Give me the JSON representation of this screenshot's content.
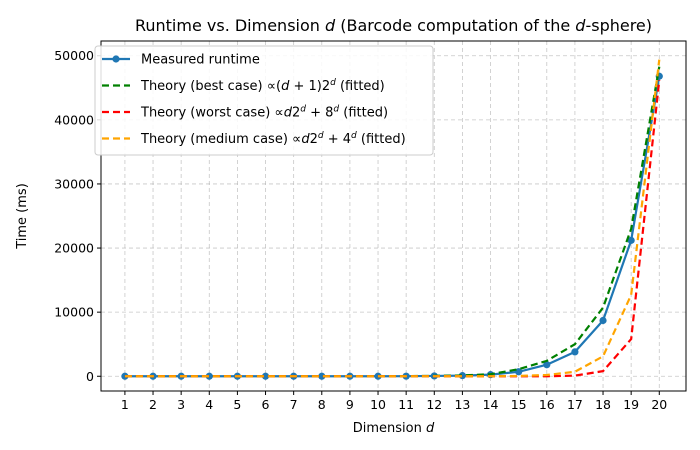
{
  "chart_data": {
    "type": "line",
    "title": "Runtime vs. Dimension d (Barcode computation of the d-sphere)",
    "title_parts": [
      {
        "text": "Runtime vs. Dimension ",
        "italic": false
      },
      {
        "text": "d",
        "italic": true
      },
      {
        "text": " (Barcode computation of the ",
        "italic": false
      },
      {
        "text": "d",
        "italic": true
      },
      {
        "text": "-sphere)",
        "italic": false
      }
    ],
    "xlabel": "Dimension d",
    "xlabel_parts": [
      {
        "text": "Dimension ",
        "italic": false
      },
      {
        "text": "d",
        "italic": true
      }
    ],
    "ylabel": "Time (ms)",
    "x": [
      1,
      2,
      3,
      4,
      5,
      6,
      7,
      8,
      9,
      10,
      11,
      12,
      13,
      14,
      15,
      16,
      17,
      18,
      19,
      20
    ],
    "xlim": [
      0.15,
      20.95
    ],
    "ylim": [
      -2300,
      52300
    ],
    "yticks": [
      0,
      10000,
      20000,
      30000,
      40000,
      50000
    ],
    "xticks": [
      1,
      2,
      3,
      4,
      5,
      6,
      7,
      8,
      9,
      10,
      11,
      12,
      13,
      14,
      15,
      16,
      17,
      18,
      19,
      20
    ],
    "grid": true,
    "legend_position": "top-left",
    "series": [
      {
        "name": "Measured runtime",
        "legend_parts": [
          {
            "text": "Measured runtime",
            "italic": false
          }
        ],
        "color": "#1f77b4",
        "style": "solid-markers",
        "values": [
          0,
          0,
          0,
          0,
          0,
          0,
          0,
          0,
          0,
          0,
          10,
          50,
          100,
          250,
          700,
          1800,
          3800,
          8700,
          21200,
          46800
        ]
      },
      {
        "name": "Theory (best case) ∝(d+1)2^d (fitted)",
        "legend_parts": [
          {
            "text": "Theory (best case)  ∝(",
            "italic": false
          },
          {
            "text": "d",
            "italic": true
          },
          {
            "text": " + 1)2",
            "italic": false
          },
          {
            "text": "d",
            "italic": true,
            "sup": true
          },
          {
            "text": " (fitted)",
            "italic": false
          }
        ],
        "color": "#008000",
        "style": "dashed",
        "values": [
          0,
          0,
          0,
          0,
          0,
          0,
          0,
          0,
          0,
          10,
          20,
          60,
          130,
          320,
          1100,
          2400,
          5000,
          10700,
          23000,
          48300
        ]
      },
      {
        "name": "Theory (worst case) ∝d2^d+8^d (fitted)",
        "legend_parts": [
          {
            "text": "Theory (worst case) ∝",
            "italic": false
          },
          {
            "text": "d",
            "italic": true
          },
          {
            "text": "2",
            "italic": false
          },
          {
            "text": "d",
            "italic": true,
            "sup": true
          },
          {
            "text": " + 8",
            "italic": false
          },
          {
            "text": "d",
            "italic": true,
            "sup": true
          },
          {
            "text": " (fitted)",
            "italic": false
          }
        ],
        "color": "#ff0000",
        "style": "dashed",
        "values": [
          0,
          0,
          0,
          0,
          0,
          0,
          0,
          0,
          0,
          0,
          0,
          0,
          0,
          0,
          0,
          0,
          100,
          800,
          5800,
          46200
        ]
      },
      {
        "name": "Theory (medium case) ∝d2^d+4^d (fitted)",
        "legend_parts": [
          {
            "text": "Theory (medium case) ∝",
            "italic": false
          },
          {
            "text": "d",
            "italic": true
          },
          {
            "text": "2",
            "italic": false
          },
          {
            "text": "d",
            "italic": true,
            "sup": true
          },
          {
            "text": " + 4",
            "italic": false
          },
          {
            "text": "d",
            "italic": true,
            "sup": true
          },
          {
            "text": " (fitted)",
            "italic": false
          }
        ],
        "color": "#ffa500",
        "style": "dashed",
        "values": [
          0,
          0,
          0,
          0,
          0,
          0,
          0,
          0,
          0,
          0,
          0,
          0,
          0,
          0,
          50,
          200,
          700,
          3100,
          12700,
          49400
        ]
      }
    ]
  }
}
